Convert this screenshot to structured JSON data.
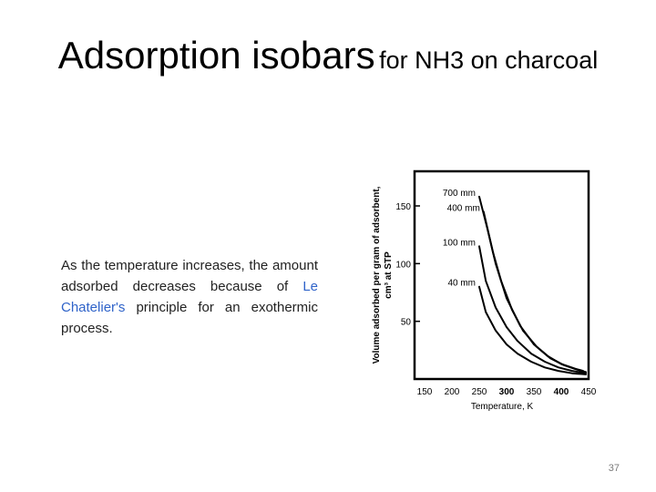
{
  "slide": {
    "title_main": "Adsorption isobars",
    "title_rest": "for NH3 on charcoal",
    "text_part1": "As the temperature increases, the amount adsorbed decreases because of ",
    "text_link": "Le Chatelier's",
    "text_part2": " principle for an exothermic process.",
    "page_number": "37"
  },
  "colors": {
    "link": "#2f63c9",
    "curve": "#000000"
  },
  "chart_data": {
    "type": "line",
    "title": "",
    "xlabel": "Temperature, K",
    "ylabel_line1": "Volume adsorbed per gram of adsorbent,",
    "ylabel_line2": "cm³ at STP",
    "xlim": [
      150,
      450
    ],
    "ylim": [
      0,
      180
    ],
    "xticks": [
      150,
      200,
      250,
      300,
      350,
      400,
      450
    ],
    "yticks": [
      50,
      100,
      150
    ],
    "grid": false,
    "series": [
      {
        "name": "700 mm",
        "x": [
          250,
          265,
          280,
          300,
          325,
          350,
          375,
          400,
          425,
          440
        ],
        "y": [
          158,
          130,
          100,
          70,
          46,
          30,
          20,
          13,
          9,
          7
        ]
      },
      {
        "name": "400 mm",
        "x": [
          258,
          275,
          290,
          310,
          330,
          355,
          380,
          405,
          430,
          445
        ],
        "y": [
          145,
          110,
          85,
          60,
          42,
          28,
          18,
          12,
          8,
          6
        ]
      },
      {
        "name": "100 mm",
        "x": [
          250,
          262,
          280,
          300,
          320,
          345,
          370,
          395,
          420,
          445
        ],
        "y": [
          115,
          85,
          62,
          45,
          33,
          22,
          15,
          10,
          7,
          5
        ]
      },
      {
        "name": "40 mm",
        "x": [
          250,
          262,
          280,
          300,
          320,
          345,
          370,
          395,
          420,
          445
        ],
        "y": [
          80,
          58,
          42,
          30,
          22,
          15,
          10,
          7,
          5,
          4
        ]
      }
    ]
  }
}
